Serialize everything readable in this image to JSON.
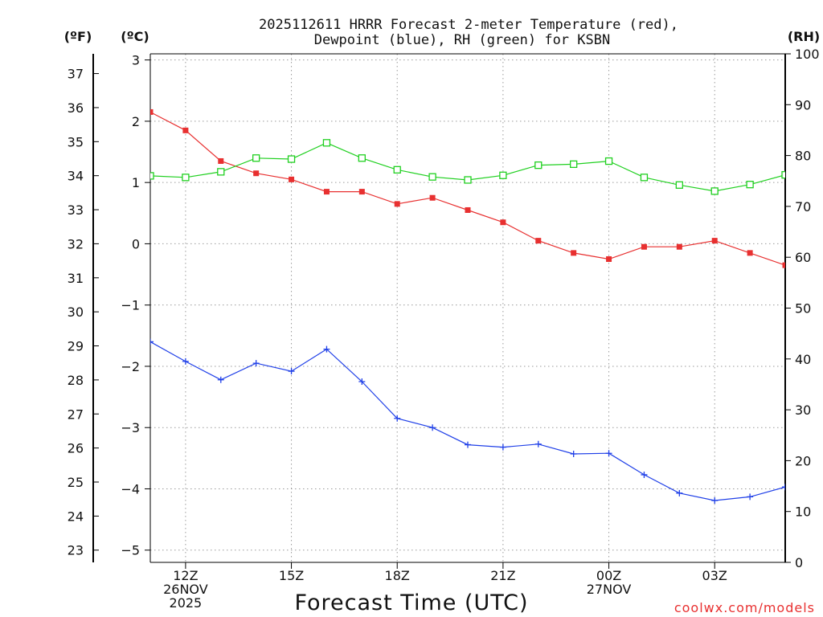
{
  "chart_data": {
    "type": "line",
    "title_line1": "2025112611 HRRR Forecast 2-meter Temperature (red),",
    "title_line2": "Dewpoint (blue), RH (green) for KSBN",
    "xlabel": "Forecast Time (UTC)",
    "unit_f": "(ºF)",
    "unit_c": "(ºC)",
    "unit_rh": "(RH)",
    "watermark": "coolwx.com/models",
    "x_hours": [
      11,
      12,
      13,
      14,
      15,
      16,
      17,
      18,
      19,
      20,
      21,
      22,
      23,
      24,
      25,
      26,
      27,
      28,
      29
    ],
    "xlim": [
      11,
      29
    ],
    "ylim_c": [
      -5.2,
      3.1
    ],
    "ylim_rh": [
      0,
      100
    ],
    "ticks_c": [
      3,
      2,
      1,
      0,
      -1,
      -2,
      -3,
      -4,
      -5
    ],
    "ticks_c_labels": [
      "3",
      "2",
      "1",
      "0",
      "−1",
      "−2",
      "−3",
      "−4",
      "−5"
    ],
    "ticks_f": [
      37,
      36,
      35,
      34,
      33,
      32,
      31,
      30,
      29,
      28,
      27,
      26,
      25,
      24,
      23
    ],
    "ticks_f_labels": [
      "37",
      "36",
      "35",
      "34",
      "33",
      "32",
      "31",
      "30",
      "29",
      "28",
      "27",
      "26",
      "25",
      "24",
      "23"
    ],
    "ticks_rh": [
      100,
      90,
      80,
      70,
      60,
      50,
      40,
      30,
      20,
      10,
      0
    ],
    "ticks_rh_labels": [
      "100",
      "90",
      "80",
      "70",
      "60",
      "50",
      "40",
      "30",
      "20",
      "10",
      "0"
    ],
    "x_ticks": [
      {
        "hour": 12,
        "lines": [
          "12Z",
          "26NOV",
          "2025"
        ]
      },
      {
        "hour": 15,
        "lines": [
          "15Z"
        ]
      },
      {
        "hour": 18,
        "lines": [
          "18Z"
        ]
      },
      {
        "hour": 21,
        "lines": [
          "21Z"
        ]
      },
      {
        "hour": 24,
        "lines": [
          "00Z",
          "27NOV"
        ]
      },
      {
        "hour": 27,
        "lines": [
          "03Z"
        ]
      }
    ],
    "series": [
      {
        "name": "Temperature",
        "units": "C",
        "color": "#e83030",
        "marker": "square-filled",
        "values": [
          2.15,
          1.85,
          1.35,
          1.15,
          1.05,
          0.85,
          0.85,
          0.65,
          0.75,
          0.55,
          0.35,
          0.05,
          -0.15,
          -0.25,
          -0.05,
          -0.05,
          0.05,
          -0.15,
          -0.35
        ]
      },
      {
        "name": "Dewpoint",
        "units": "C",
        "color": "#2040e8",
        "marker": "plus",
        "values": [
          -1.6,
          -1.92,
          -2.22,
          -1.95,
          -2.08,
          -1.72,
          -2.25,
          -2.85,
          -3.0,
          -3.28,
          -3.32,
          -3.27,
          -3.43,
          -3.42,
          -3.77,
          -4.07,
          -4.19,
          -4.13,
          -3.97
        ]
      },
      {
        "name": "RH",
        "units": "%",
        "color": "#20d020",
        "marker": "square-open",
        "values": [
          76,
          75.7,
          76.8,
          79.5,
          79.3,
          82.5,
          79.5,
          77.2,
          75.8,
          75.2,
          76.1,
          78.1,
          78.3,
          78.9,
          75.7,
          74.2,
          73.0,
          74.3,
          76.2
        ]
      }
    ]
  }
}
